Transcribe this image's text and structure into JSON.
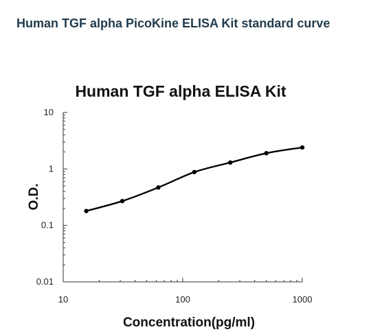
{
  "page": {
    "title": "Human TGF alpha PicoKine ELISA Kit standard curve"
  },
  "chart_data": {
    "type": "line",
    "title": "Human TGF alpha ELISA Kit",
    "xlabel": "Concentration(pg/ml)",
    "ylabel": "O.D.",
    "xscale": "log",
    "yscale": "log",
    "xlim": [
      10,
      1000
    ],
    "ylim": [
      0.01,
      10
    ],
    "xticks": [
      "10",
      "100",
      "1000"
    ],
    "yticks": [
      "0.01",
      "0.1",
      "1",
      "10"
    ],
    "grid": false,
    "series": [
      {
        "x": [
          15.6,
          31.2,
          62.5,
          125,
          250,
          500,
          1000
        ],
        "y": [
          0.18,
          0.27,
          0.47,
          0.88,
          1.3,
          1.9,
          2.4
        ]
      }
    ],
    "colors": {
      "line": "#000000",
      "marker": "#000000",
      "axis": "#333333"
    }
  }
}
